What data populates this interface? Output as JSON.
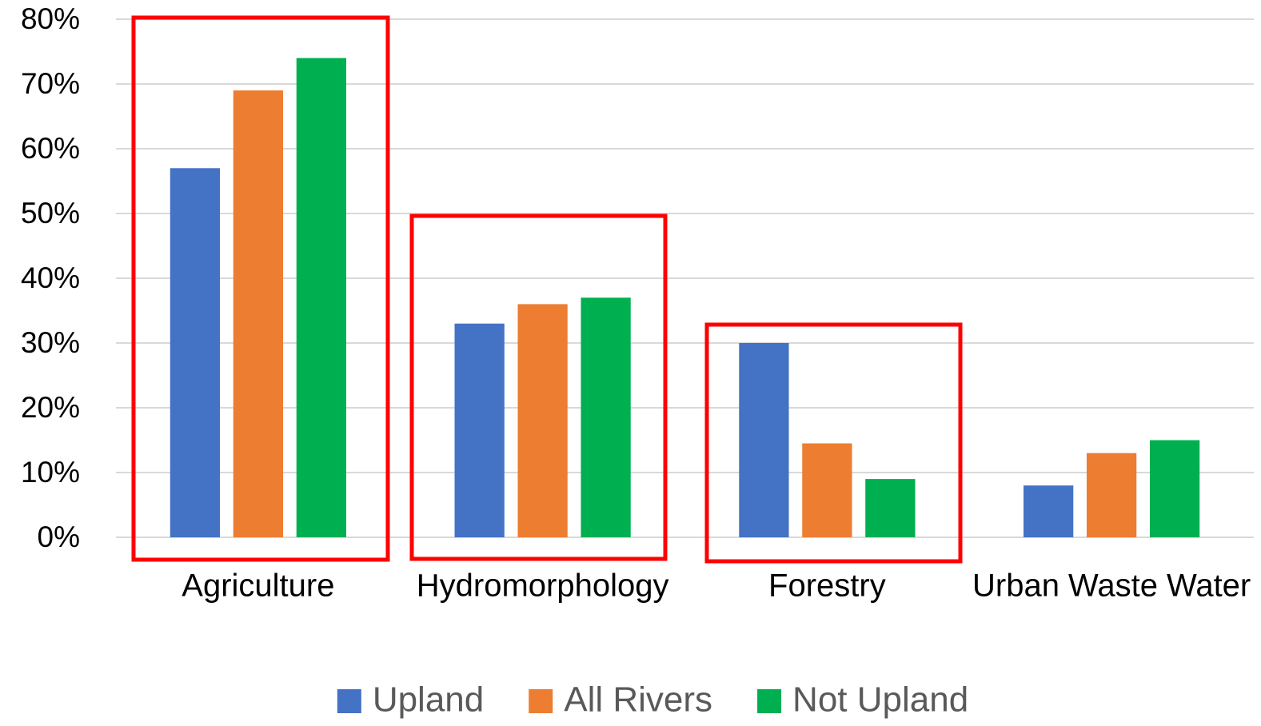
{
  "chart_data": {
    "type": "bar",
    "categories": [
      "Agriculture",
      "Hydromorphology",
      "Forestry",
      "Urban Waste Water"
    ],
    "series": [
      {
        "name": "Upland",
        "color": "#4472c4",
        "values": [
          57,
          33,
          30,
          8
        ]
      },
      {
        "name": "All Rivers",
        "color": "#ed7d31",
        "values": [
          69,
          36,
          14.5,
          13
        ]
      },
      {
        "name": "Not Upland",
        "color": "#00b050",
        "values": [
          74,
          37,
          9,
          15
        ]
      }
    ],
    "ylim": [
      0,
      80
    ],
    "yticks": [
      {
        "value": 0,
        "label": "0%"
      },
      {
        "value": 10,
        "label": "10%"
      },
      {
        "value": 20,
        "label": "20%"
      },
      {
        "value": 30,
        "label": "30%"
      },
      {
        "value": 40,
        "label": "40%"
      },
      {
        "value": 50,
        "label": "50%"
      },
      {
        "value": 60,
        "label": "60%"
      },
      {
        "value": 70,
        "label": "70%"
      },
      {
        "value": 80,
        "label": "80%"
      }
    ],
    "grid": true,
    "legend": "bottom"
  }
}
